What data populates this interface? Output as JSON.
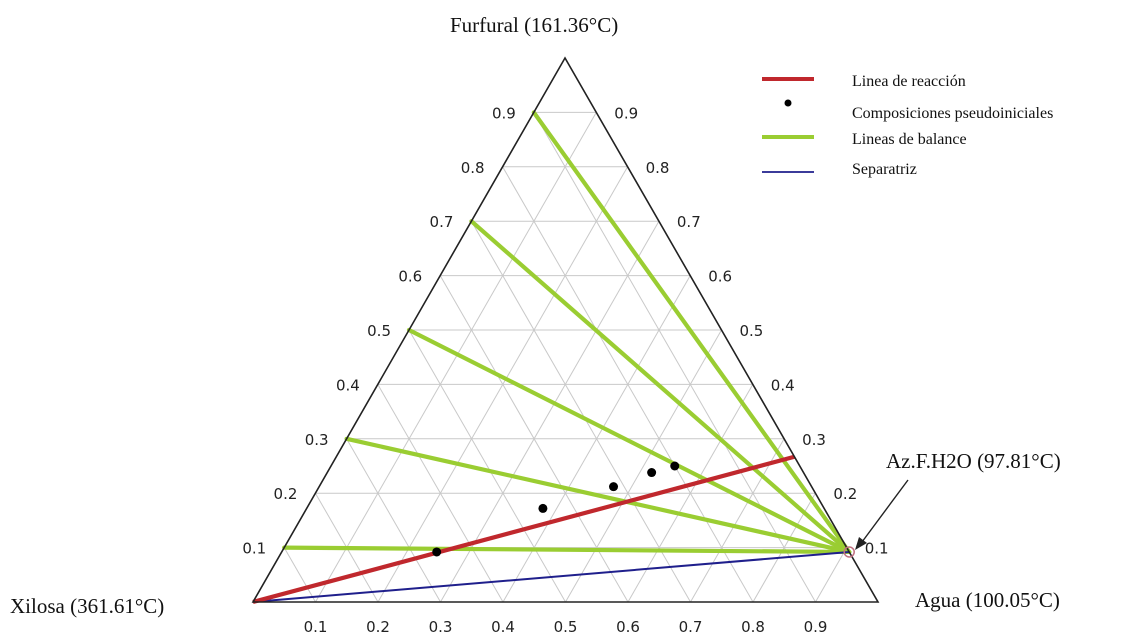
{
  "chart_data": {
    "type": "ternary",
    "title": "",
    "vertices": {
      "top": "Furfural (161.36°C)",
      "left": "Xilosa (361.61°C)",
      "right": "Agua (100.05°C)"
    },
    "azeotrope_label": "Az.F.H2O (97.81°C)",
    "ticks": [
      0.1,
      0.2,
      0.3,
      0.4,
      0.5,
      0.6,
      0.7,
      0.8,
      0.9
    ],
    "tick_labels": [
      "0.1",
      "0.2",
      "0.3",
      "0.4",
      "0.5",
      "0.6",
      "0.7",
      "0.8",
      "0.9"
    ],
    "grid": true,
    "legend_position": "top-right",
    "legend": [
      {
        "label": "Linea de reacción",
        "color": "#c0282d",
        "kind": "line"
      },
      {
        "label": "Composiciones pseudoiniciales",
        "color": "#000000",
        "kind": "point"
      },
      {
        "label": "Lineas de balance",
        "color": "#9acd32",
        "kind": "line"
      },
      {
        "label": "Separatriz",
        "color": "#1f1f8c",
        "kind": "line"
      }
    ],
    "azeotrope": {
      "furfural": 0.092,
      "agua": 0.908,
      "xilosa": 0.0
    },
    "reaction_line": {
      "from": {
        "furfural": 0.0,
        "agua": 0.0,
        "xilosa": 1.0
      },
      "to": {
        "furfural": 0.267,
        "agua": 0.733,
        "xilosa": 0.0
      },
      "color": "#c0282d"
    },
    "separatrix": {
      "from": {
        "furfural": 0.0,
        "agua": 0.0,
        "xilosa": 1.0
      },
      "to": {
        "furfural": 0.092,
        "agua": 0.908,
        "xilosa": 0.0
      },
      "color": "#1f1f8c"
    },
    "balance_lines": [
      {
        "from_furfural": 0.1,
        "xilosa_side": true
      },
      {
        "from_furfural": 0.3,
        "xilosa_side": true
      },
      {
        "from_furfural": 0.5,
        "xilosa_side": true
      },
      {
        "from_furfural": 0.7,
        "xilosa_side": true
      },
      {
        "from_furfural": 0.9,
        "xilosa_side": true
      }
    ],
    "pseudo_initial_points": [
      {
        "furfural": 0.092,
        "agua": 0.248,
        "xilosa": 0.66
      },
      {
        "furfural": 0.172,
        "agua": 0.378,
        "xilosa": 0.45
      },
      {
        "furfural": 0.212,
        "agua": 0.471,
        "xilosa": 0.317
      },
      {
        "furfural": 0.238,
        "agua": 0.519,
        "xilosa": 0.243
      },
      {
        "furfural": 0.25,
        "agua": 0.55,
        "xilosa": 0.2
      }
    ]
  }
}
